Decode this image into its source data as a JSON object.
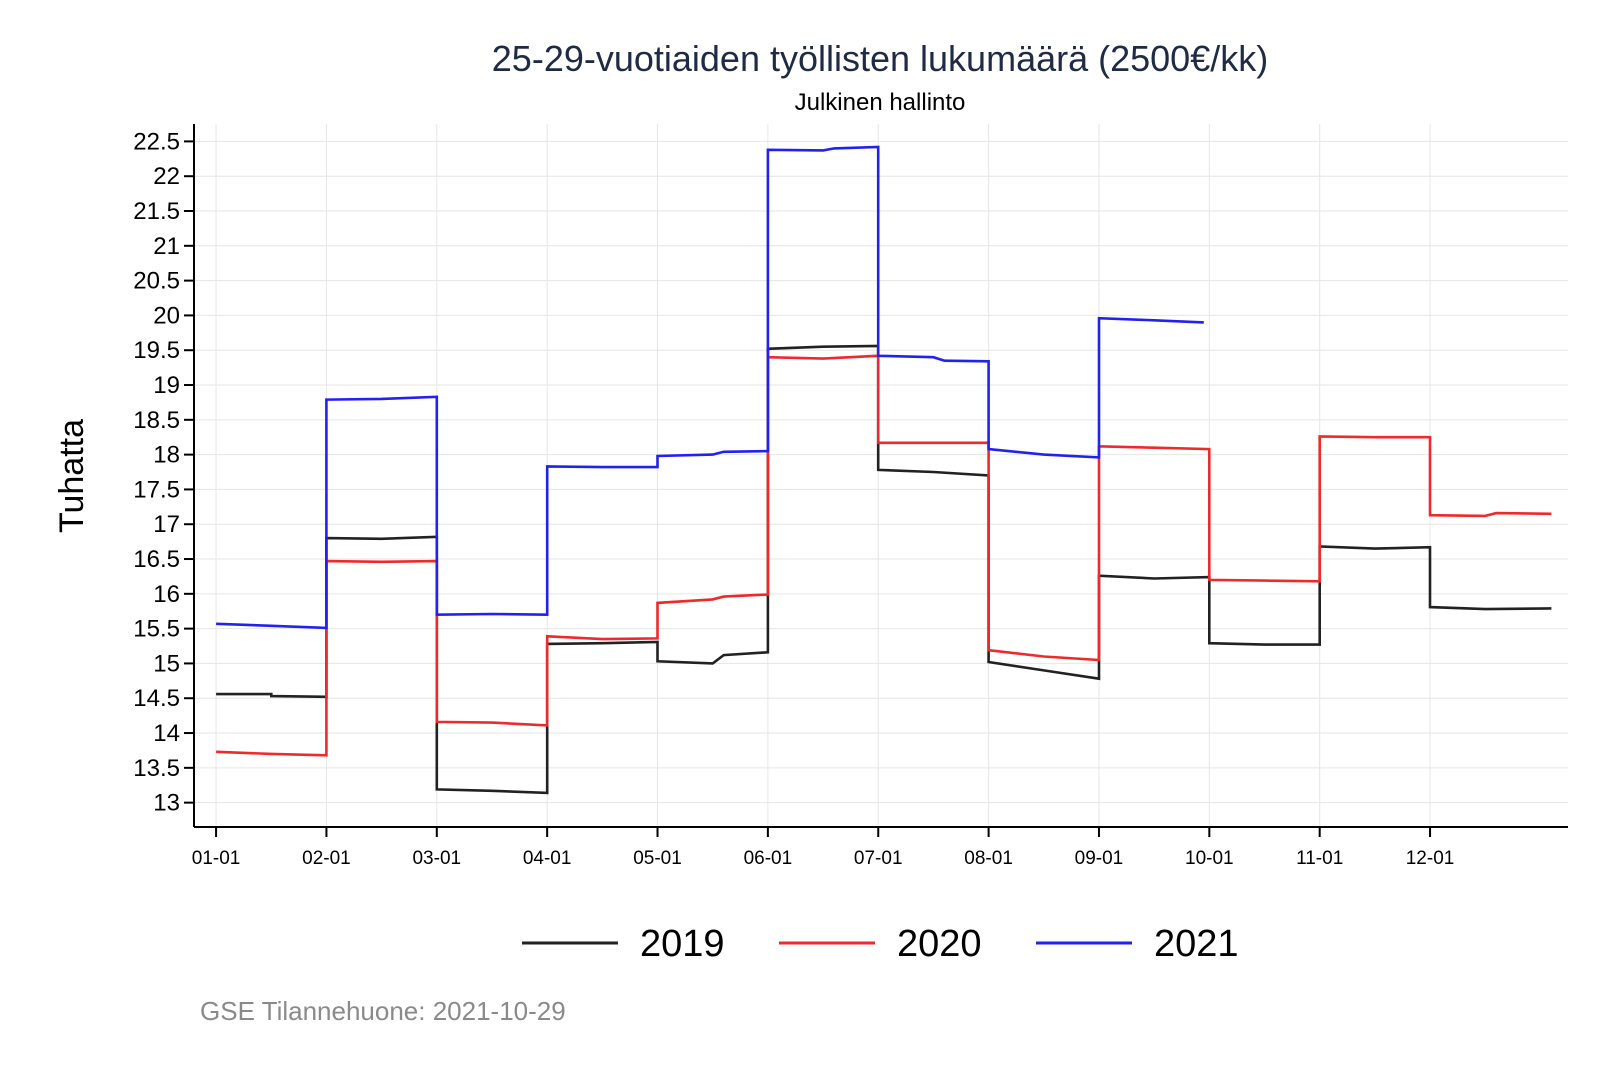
{
  "chart_data": {
    "type": "line",
    "title": "25-29-vuotiaiden työllisten lukumäärä (2500€/kk)",
    "subtitle": "Julkinen hallinto",
    "ylabel": "Tuhatta",
    "xlabel": "",
    "ylim": [
      12.65,
      22.75
    ],
    "yticks": [
      13,
      13.5,
      14,
      14.5,
      15,
      15.5,
      16,
      16.5,
      17,
      17.5,
      18,
      18.5,
      19,
      19.5,
      20,
      20.5,
      21,
      21.5,
      22,
      22.5
    ],
    "ytick_labels": [
      "13",
      "13.5",
      "14",
      "14.5",
      "15",
      "15.5",
      "16",
      "16.5",
      "17",
      "17.5",
      "18",
      "18.5",
      "19",
      "19.5",
      "20",
      "20.5",
      "21",
      "21.5",
      "22",
      "22.5"
    ],
    "xlim": [
      0.8,
      13.25
    ],
    "xticks": [
      1,
      2,
      3,
      4,
      5,
      6,
      7,
      8,
      9,
      10,
      11,
      12
    ],
    "xtick_labels": [
      "01-01",
      "02-01",
      "03-01",
      "04-01",
      "05-01",
      "06-01",
      "07-01",
      "08-01",
      "09-01",
      "10-01",
      "11-01",
      "12-01"
    ],
    "grid": true,
    "legend_position": "bottom",
    "caption": "GSE Tilannehuone: 2021-10-29",
    "series": [
      {
        "name": "2019",
        "color": "#222222",
        "points": [
          [
            1,
            14.56
          ],
          [
            1.5,
            14.56
          ],
          [
            1.5,
            14.53
          ],
          [
            2,
            14.52
          ],
          [
            2,
            16.8
          ],
          [
            2.5,
            16.79
          ],
          [
            3,
            16.82
          ],
          [
            3,
            13.19
          ],
          [
            3.5,
            13.17
          ],
          [
            4,
            13.14
          ],
          [
            4,
            15.28
          ],
          [
            4.5,
            15.29
          ],
          [
            5,
            15.31
          ],
          [
            5,
            15.03
          ],
          [
            5.5,
            15.0
          ],
          [
            5.6,
            15.12
          ],
          [
            6,
            15.16
          ],
          [
            6,
            19.52
          ],
          [
            6.5,
            19.55
          ],
          [
            7,
            19.56
          ],
          [
            7,
            17.78
          ],
          [
            7.5,
            17.75
          ],
          [
            8,
            17.7
          ],
          [
            8,
            15.02
          ],
          [
            8.5,
            14.9
          ],
          [
            9,
            14.78
          ],
          [
            9,
            16.26
          ],
          [
            9.5,
            16.22
          ],
          [
            10,
            16.24
          ],
          [
            10,
            15.29
          ],
          [
            10.5,
            15.27
          ],
          [
            11,
            15.27
          ],
          [
            11,
            16.68
          ],
          [
            11.5,
            16.65
          ],
          [
            12,
            16.67
          ],
          [
            12,
            15.81
          ],
          [
            12.5,
            15.78
          ],
          [
            13.1,
            15.79
          ]
        ]
      },
      {
        "name": "2020",
        "color": "#ee2a2a",
        "points": [
          [
            1,
            13.73
          ],
          [
            1.5,
            13.7
          ],
          [
            2,
            13.68
          ],
          [
            2,
            16.47
          ],
          [
            2.5,
            16.46
          ],
          [
            3,
            16.47
          ],
          [
            3,
            14.16
          ],
          [
            3.5,
            14.15
          ],
          [
            4,
            14.11
          ],
          [
            4,
            15.39
          ],
          [
            4.5,
            15.35
          ],
          [
            5,
            15.36
          ],
          [
            5,
            15.87
          ],
          [
            5.5,
            15.92
          ],
          [
            5.6,
            15.96
          ],
          [
            6,
            15.99
          ],
          [
            6,
            19.4
          ],
          [
            6.5,
            19.38
          ],
          [
            7,
            19.42
          ],
          [
            7,
            18.17
          ],
          [
            7.5,
            18.17
          ],
          [
            8,
            18.17
          ],
          [
            8,
            15.19
          ],
          [
            8.5,
            15.1
          ],
          [
            9,
            15.05
          ],
          [
            9,
            18.12
          ],
          [
            9.5,
            18.1
          ],
          [
            10,
            18.08
          ],
          [
            10,
            16.2
          ],
          [
            10.5,
            16.19
          ],
          [
            11,
            16.18
          ],
          [
            11,
            18.26
          ],
          [
            11.5,
            18.25
          ],
          [
            12,
            18.25
          ],
          [
            12,
            17.13
          ],
          [
            12.5,
            17.12
          ],
          [
            12.6,
            17.16
          ],
          [
            13.1,
            17.15
          ]
        ]
      },
      {
        "name": "2021",
        "color": "#2222ee",
        "points": [
          [
            1,
            15.57
          ],
          [
            1.5,
            15.54
          ],
          [
            2,
            15.51
          ],
          [
            2,
            18.79
          ],
          [
            2.5,
            18.8
          ],
          [
            3,
            18.83
          ],
          [
            3,
            15.7
          ],
          [
            3.5,
            15.71
          ],
          [
            4,
            15.7
          ],
          [
            4,
            17.83
          ],
          [
            4.5,
            17.82
          ],
          [
            5,
            17.82
          ],
          [
            5,
            17.98
          ],
          [
            5.5,
            18.0
          ],
          [
            5.6,
            18.04
          ],
          [
            6,
            18.05
          ],
          [
            6,
            22.38
          ],
          [
            6.5,
            22.37
          ],
          [
            6.6,
            22.4
          ],
          [
            7,
            22.42
          ],
          [
            7,
            19.42
          ],
          [
            7.5,
            19.4
          ],
          [
            7.6,
            19.35
          ],
          [
            8,
            19.34
          ],
          [
            8,
            18.08
          ],
          [
            8.5,
            18.0
          ],
          [
            9,
            17.96
          ],
          [
            9,
            19.96
          ],
          [
            9.5,
            19.93
          ],
          [
            9.95,
            19.9
          ]
        ]
      }
    ]
  }
}
